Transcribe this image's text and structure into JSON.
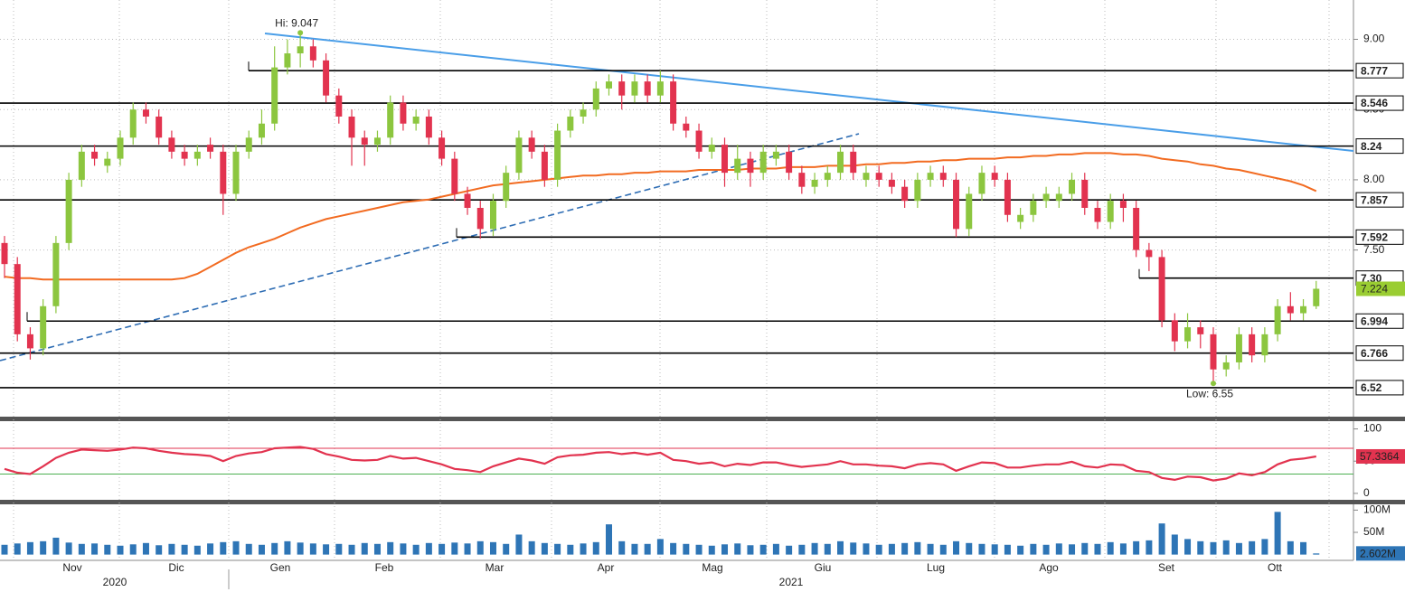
{
  "chart_data": [
    {
      "type": "candlestick",
      "ohlc": [
        [
          7.55,
          7.6,
          7.3,
          7.4
        ],
        [
          7.4,
          7.45,
          6.85,
          6.9
        ],
        [
          6.9,
          6.95,
          6.72,
          6.8
        ],
        [
          6.8,
          7.15,
          6.75,
          7.1
        ],
        [
          7.1,
          7.6,
          7.05,
          7.55
        ],
        [
          7.55,
          8.05,
          7.5,
          8.0
        ],
        [
          8.0,
          8.25,
          7.95,
          8.2
        ],
        [
          8.2,
          8.25,
          8.1,
          8.15
        ],
        [
          8.1,
          8.2,
          8.05,
          8.15
        ],
        [
          8.15,
          8.35,
          8.1,
          8.3
        ],
        [
          8.3,
          8.55,
          8.25,
          8.5
        ],
        [
          8.5,
          8.55,
          8.4,
          8.45
        ],
        [
          8.45,
          8.5,
          8.25,
          8.3
        ],
        [
          8.3,
          8.35,
          8.15,
          8.2
        ],
        [
          8.2,
          8.25,
          8.1,
          8.15
        ],
        [
          8.15,
          8.25,
          8.1,
          8.2
        ],
        [
          8.25,
          8.3,
          8.15,
          8.2
        ],
        [
          8.2,
          8.25,
          7.75,
          7.9
        ],
        [
          7.9,
          8.25,
          7.85,
          8.2
        ],
        [
          8.2,
          8.35,
          8.15,
          8.3
        ],
        [
          8.3,
          8.5,
          8.25,
          8.4
        ],
        [
          8.4,
          8.95,
          8.35,
          8.8
        ],
        [
          8.8,
          9.0,
          8.75,
          8.9
        ],
        [
          8.9,
          9.047,
          8.8,
          8.95
        ],
        [
          8.95,
          9.0,
          8.8,
          8.85
        ],
        [
          8.85,
          8.9,
          8.55,
          8.6
        ],
        [
          8.6,
          8.65,
          8.4,
          8.45
        ],
        [
          8.45,
          8.5,
          8.1,
          8.3
        ],
        [
          8.3,
          8.35,
          8.1,
          8.25
        ],
        [
          8.25,
          8.35,
          8.2,
          8.3
        ],
        [
          8.3,
          8.6,
          8.25,
          8.55
        ],
        [
          8.55,
          8.6,
          8.35,
          8.4
        ],
        [
          8.4,
          8.5,
          8.35,
          8.45
        ],
        [
          8.45,
          8.5,
          8.25,
          8.3
        ],
        [
          8.3,
          8.35,
          8.1,
          8.15
        ],
        [
          8.15,
          8.2,
          7.85,
          7.9
        ],
        [
          7.9,
          7.95,
          7.75,
          7.8
        ],
        [
          7.8,
          7.85,
          7.58,
          7.65
        ],
        [
          7.65,
          7.9,
          7.6,
          7.85
        ],
        [
          7.85,
          8.1,
          7.8,
          8.05
        ],
        [
          8.05,
          8.35,
          8.0,
          8.3
        ],
        [
          8.3,
          8.35,
          8.15,
          8.2
        ],
        [
          8.2,
          8.25,
          7.95,
          8.0
        ],
        [
          8.0,
          8.4,
          7.95,
          8.35
        ],
        [
          8.35,
          8.5,
          8.3,
          8.45
        ],
        [
          8.45,
          8.55,
          8.4,
          8.5
        ],
        [
          8.5,
          8.7,
          8.45,
          8.65
        ],
        [
          8.65,
          8.75,
          8.6,
          8.7
        ],
        [
          8.7,
          8.75,
          8.5,
          8.6
        ],
        [
          8.6,
          8.75,
          8.55,
          8.7
        ],
        [
          8.7,
          8.75,
          8.55,
          8.6
        ],
        [
          8.6,
          8.777,
          8.55,
          8.7
        ],
        [
          8.7,
          8.75,
          8.35,
          8.4
        ],
        [
          8.4,
          8.45,
          8.3,
          8.35
        ],
        [
          8.35,
          8.4,
          8.15,
          8.2
        ],
        [
          8.2,
          8.3,
          8.15,
          8.25
        ],
        [
          8.25,
          8.3,
          7.95,
          8.05
        ],
        [
          8.05,
          8.25,
          8.0,
          8.15
        ],
        [
          8.15,
          8.2,
          7.95,
          8.05
        ],
        [
          8.05,
          8.25,
          8.0,
          8.2
        ],
        [
          8.15,
          8.25,
          8.1,
          8.2
        ],
        [
          8.2,
          8.25,
          8.0,
          8.05
        ],
        [
          8.05,
          8.1,
          7.9,
          7.95
        ],
        [
          7.95,
          8.05,
          7.9,
          8.0
        ],
        [
          8.0,
          8.1,
          7.95,
          8.05
        ],
        [
          8.05,
          8.25,
          8.0,
          8.2
        ],
        [
          8.2,
          8.25,
          8.0,
          8.05
        ],
        [
          8.0,
          8.1,
          7.95,
          8.05
        ],
        [
          8.05,
          8.1,
          7.95,
          8.0
        ],
        [
          8.0,
          8.05,
          7.9,
          7.95
        ],
        [
          7.95,
          8.0,
          7.8,
          7.85
        ],
        [
          7.85,
          8.05,
          7.8,
          8.0
        ],
        [
          8.0,
          8.1,
          7.95,
          8.05
        ],
        [
          8.05,
          8.1,
          7.95,
          8.0
        ],
        [
          8.0,
          8.05,
          7.592,
          7.65
        ],
        [
          7.65,
          7.95,
          7.6,
          7.9
        ],
        [
          7.9,
          8.1,
          7.85,
          8.05
        ],
        [
          8.05,
          8.1,
          7.95,
          8.0
        ],
        [
          8.0,
          8.05,
          7.7,
          7.75
        ],
        [
          7.7,
          7.8,
          7.65,
          7.75
        ],
        [
          7.75,
          7.9,
          7.7,
          7.85
        ],
        [
          7.85,
          7.95,
          7.8,
          7.9
        ],
        [
          7.85,
          7.95,
          7.8,
          7.9
        ],
        [
          7.9,
          8.05,
          7.85,
          8.0
        ],
        [
          8.0,
          8.05,
          7.75,
          7.8
        ],
        [
          7.8,
          7.85,
          7.65,
          7.7
        ],
        [
          7.7,
          7.9,
          7.65,
          7.85
        ],
        [
          7.85,
          7.9,
          7.7,
          7.8
        ],
        [
          7.8,
          7.85,
          7.45,
          7.5
        ],
        [
          7.5,
          7.55,
          7.35,
          7.45
        ],
        [
          7.45,
          7.5,
          6.95,
          7.0
        ],
        [
          7.0,
          7.05,
          6.78,
          6.85
        ],
        [
          6.85,
          7.05,
          6.8,
          6.95
        ],
        [
          6.95,
          7.0,
          6.8,
          6.9
        ],
        [
          6.9,
          6.95,
          6.55,
          6.65
        ],
        [
          6.65,
          6.75,
          6.6,
          6.7
        ],
        [
          6.7,
          6.95,
          6.65,
          6.9
        ],
        [
          6.9,
          6.95,
          6.7,
          6.75
        ],
        [
          6.75,
          6.95,
          6.7,
          6.9
        ],
        [
          6.9,
          7.15,
          6.85,
          7.1
        ],
        [
          7.1,
          7.2,
          7.0,
          7.05
        ],
        [
          7.05,
          7.15,
          7.0,
          7.1
        ],
        [
          7.1,
          7.28,
          7.08,
          7.224
        ]
      ],
      "up_color": "#8cc63f",
      "down_color": "#e2334f",
      "moving_average": {
        "color": "#f26b21",
        "values": [
          7.31,
          7.3,
          7.3,
          7.29,
          7.29,
          7.29,
          7.29,
          7.29,
          7.29,
          7.29,
          7.29,
          7.29,
          7.29,
          7.29,
          7.3,
          7.33,
          7.38,
          7.43,
          7.48,
          7.52,
          7.55,
          7.58,
          7.62,
          7.66,
          7.69,
          7.72,
          7.74,
          7.76,
          7.78,
          7.8,
          7.82,
          7.84,
          7.85,
          7.86,
          7.88,
          7.9,
          7.92,
          7.94,
          7.96,
          7.97,
          7.98,
          7.99,
          8.0,
          8.01,
          8.02,
          8.03,
          8.03,
          8.04,
          8.04,
          8.05,
          8.05,
          8.06,
          8.06,
          8.06,
          8.07,
          8.07,
          8.07,
          8.07,
          8.08,
          8.08,
          8.08,
          8.09,
          8.09,
          8.09,
          8.1,
          8.1,
          8.1,
          8.11,
          8.11,
          8.12,
          8.12,
          8.13,
          8.13,
          8.14,
          8.14,
          8.15,
          8.15,
          8.15,
          8.16,
          8.16,
          8.17,
          8.17,
          8.18,
          8.18,
          8.19,
          8.19,
          8.19,
          8.18,
          8.18,
          8.17,
          8.15,
          8.14,
          8.13,
          8.11,
          8.1,
          8.08,
          8.07,
          8.05,
          8.03,
          8.01,
          7.99,
          7.96,
          7.92
        ]
      },
      "ylim": [
        6.32,
        9.28
      ],
      "yticks": [
        {
          "value": 7.5,
          "label": "7.50"
        },
        {
          "value": 8,
          "label": "8.00"
        },
        {
          "value": 8.5,
          "label": "8.50"
        },
        {
          "value": 9,
          "label": "9.00"
        }
      ],
      "levels": [
        {
          "value": 8.777,
          "label": "8.777"
        },
        {
          "value": 8.546,
          "label": "8.546"
        },
        {
          "value": 8.24,
          "label": "8.24"
        },
        {
          "value": 7.857,
          "label": "7.857"
        },
        {
          "value": 7.592,
          "label": "7.592"
        },
        {
          "value": 7.3,
          "label": "7.30"
        },
        {
          "value": 6.994,
          "label": "6.994"
        },
        {
          "value": 6.766,
          "label": "6.766"
        },
        {
          "value": 6.52,
          "label": "6.52"
        }
      ],
      "last": {
        "value": 7.224,
        "label": "7.224",
        "color": "#9acd32"
      },
      "annotations": [
        {
          "text": "Hi: 9.047",
          "value": 9.047
        },
        {
          "text": "Low: 6.55",
          "value": 6.55
        }
      ]
    },
    {
      "type": "line",
      "color": "#e2334f",
      "values": [
        38,
        32,
        30,
        42,
        55,
        63,
        68,
        67,
        66,
        68,
        71,
        70,
        66,
        63,
        61,
        60,
        58,
        50,
        58,
        62,
        64,
        70,
        71,
        72,
        69,
        61,
        57,
        52,
        51,
        52,
        58,
        54,
        55,
        50,
        45,
        38,
        36,
        33,
        42,
        48,
        54,
        51,
        46,
        56,
        59,
        60,
        63,
        64,
        61,
        63,
        60,
        63,
        52,
        50,
        46,
        48,
        42,
        46,
        44,
        48,
        48,
        44,
        41,
        43,
        45,
        50,
        45,
        45,
        43,
        42,
        39,
        45,
        47,
        45,
        35,
        42,
        48,
        47,
        40,
        40,
        43,
        45,
        45,
        49,
        42,
        40,
        45,
        44,
        35,
        33,
        24,
        21,
        26,
        25,
        20,
        23,
        31,
        28,
        33,
        45,
        52,
        54,
        57.3364
      ],
      "ylim": [
        -10,
        112
      ],
      "yticks": [
        0,
        50,
        100
      ],
      "reference_lines": [
        {
          "value": 70,
          "color": "#e2334f"
        },
        {
          "value": 30,
          "color": "#4caf50"
        }
      ]
    },
    {
      "type": "bar",
      "color": "#2e75b6",
      "values": [
        22,
        25,
        28,
        30,
        38,
        27,
        24,
        25,
        22,
        20,
        23,
        26,
        21,
        24,
        22,
        20,
        25,
        28,
        30,
        24,
        22,
        26,
        30,
        27,
        25,
        23,
        24,
        22,
        26,
        24,
        28,
        25,
        22,
        26,
        24,
        27,
        25,
        30,
        28,
        24,
        45,
        30,
        26,
        24,
        22,
        25,
        28,
        68,
        30,
        24,
        24,
        35,
        26,
        24,
        22,
        20,
        23,
        25,
        21,
        22,
        24,
        20,
        22,
        26,
        24,
        30,
        27,
        25,
        22,
        24,
        26,
        28,
        24,
        22,
        30,
        26,
        24,
        23,
        22,
        20,
        24,
        22,
        25,
        23,
        26,
        24,
        28,
        25,
        30,
        32,
        70,
        45,
        35,
        30,
        28,
        32,
        26,
        30,
        35,
        96,
        30,
        28,
        2.602
      ],
      "last_value_label": "2.602M",
      "ylim": [
        -13,
        113
      ],
      "yticks": [
        {
          "value": 50,
          "label": "50M"
        },
        {
          "value": 100,
          "label": "100M"
        }
      ],
      "months": [
        "Nov",
        "Dic",
        "Gen",
        "Feb",
        "Mar",
        "Apr",
        "Mag",
        "Giu",
        "Lug",
        "Ago",
        "Set",
        "Ott"
      ],
      "years": [
        "2020",
        "2021"
      ]
    }
  ]
}
